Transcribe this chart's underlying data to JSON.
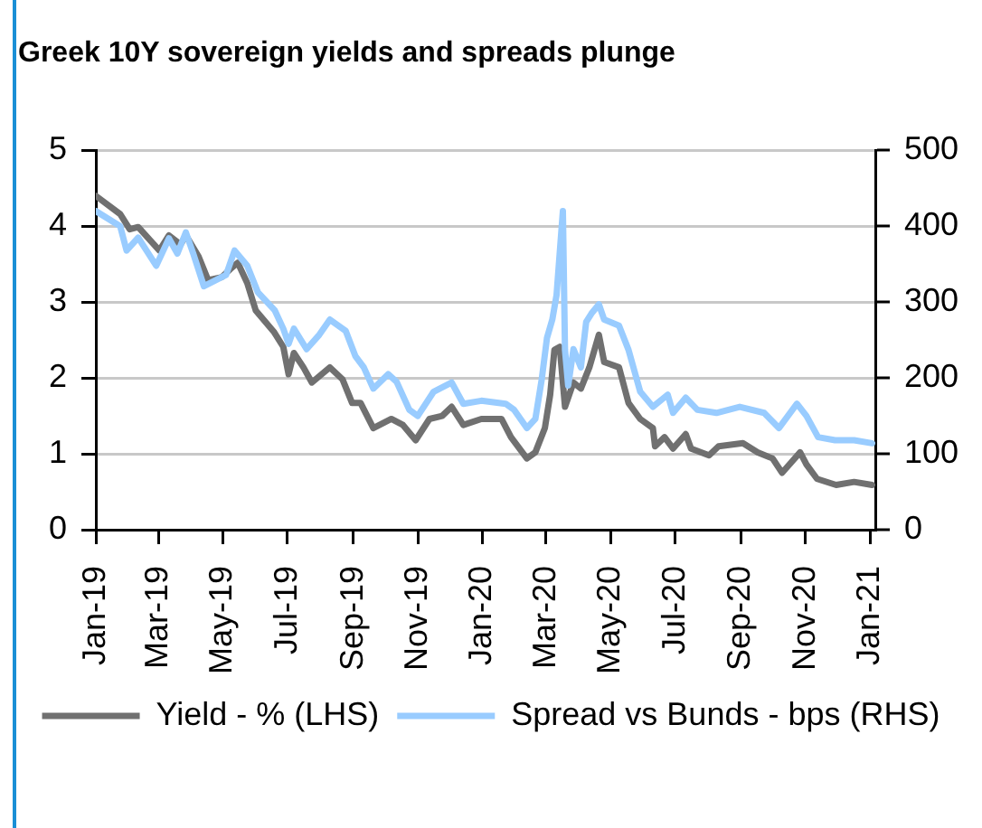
{
  "chart_data": {
    "type": "line",
    "title": "Greek 10Y sovereign yields and spreads plunge",
    "xlim": [
      "2019-01-01",
      "2021-01-06"
    ],
    "xticks": [
      {
        "value": "2019-01-01",
        "label": "Jan-19"
      },
      {
        "value": "2019-03-01",
        "label": "Mar-19"
      },
      {
        "value": "2019-05-01",
        "label": "May-19"
      },
      {
        "value": "2019-07-01",
        "label": "Jul-19"
      },
      {
        "value": "2019-09-01",
        "label": "Sep-19"
      },
      {
        "value": "2019-11-01",
        "label": "Nov-19"
      },
      {
        "value": "2020-01-01",
        "label": "Jan-20"
      },
      {
        "value": "2020-03-01",
        "label": "Mar-20"
      },
      {
        "value": "2020-05-01",
        "label": "May-20"
      },
      {
        "value": "2020-07-01",
        "label": "Jul-20"
      },
      {
        "value": "2020-09-01",
        "label": "Sep-20"
      },
      {
        "value": "2020-11-01",
        "label": "Nov-20"
      },
      {
        "value": "2021-01-01",
        "label": "Jan-21"
      }
    ],
    "ylim": [
      0,
      5
    ],
    "yticks": [
      0,
      1,
      2,
      3,
      4,
      5
    ],
    "y2lim": [
      0,
      500
    ],
    "y2ticks": [
      0,
      100,
      200,
      300,
      400,
      500
    ],
    "grid": "y",
    "legend": "bottom",
    "line_style": "solid",
    "series": [
      {
        "name": "Yield - % (LHS)",
        "color": "#707070",
        "x": [
          "2019-01-01",
          "2019-01-24",
          "2019-02-02",
          "2019-02-10",
          "2019-03-02",
          "2019-03-11",
          "2019-03-22",
          "2019-03-27",
          "2019-04-08",
          "2019-04-17",
          "2019-04-30",
          "2019-05-09",
          "2019-05-15",
          "2019-05-24",
          "2019-06-01",
          "2019-06-18",
          "2019-06-27",
          "2019-07-02",
          "2019-07-07",
          "2019-07-16",
          "2019-07-24",
          "2019-08-10",
          "2019-08-22",
          "2019-08-31",
          "2019-09-08",
          "2019-09-20",
          "2019-10-07",
          "2019-10-18",
          "2019-10-30",
          "2019-11-12",
          "2019-11-24",
          "2019-12-03",
          "2019-12-14",
          "2019-12-31",
          "2020-01-19",
          "2020-01-28",
          "2020-02-12",
          "2020-02-20",
          "2020-02-29",
          "2020-03-05",
          "2020-03-09",
          "2020-03-14",
          "2020-03-19",
          "2020-03-27",
          "2020-04-03",
          "2020-04-11",
          "2020-04-20",
          "2020-04-25",
          "2020-05-09",
          "2020-05-18",
          "2020-05-29",
          "2020-06-10",
          "2020-06-12",
          "2020-06-21",
          "2020-06-29",
          "2020-07-11",
          "2020-07-16",
          "2020-08-02",
          "2020-08-11",
          "2020-09-03",
          "2020-09-17",
          "2020-10-01",
          "2020-10-10",
          "2020-10-27",
          "2020-11-02",
          "2020-11-12",
          "2020-11-30",
          "2020-12-17",
          "2021-01-03"
        ],
        "values": [
          4.4,
          4.16,
          3.96,
          3.99,
          3.68,
          3.88,
          3.76,
          3.88,
          3.6,
          3.29,
          3.33,
          3.45,
          3.52,
          3.25,
          2.89,
          2.61,
          2.41,
          2.05,
          2.33,
          2.14,
          1.94,
          2.14,
          1.98,
          1.67,
          1.67,
          1.34,
          1.46,
          1.38,
          1.18,
          1.46,
          1.5,
          1.62,
          1.38,
          1.46,
          1.46,
          1.22,
          0.94,
          1.02,
          1.34,
          1.78,
          2.37,
          2.41,
          1.62,
          1.94,
          1.86,
          2.14,
          2.57,
          2.21,
          2.14,
          1.67,
          1.46,
          1.34,
          1.1,
          1.22,
          1.07,
          1.26,
          1.07,
          0.98,
          1.1,
          1.14,
          1.02,
          0.94,
          0.75,
          1.02,
          0.86,
          0.67,
          0.59,
          0.63,
          0.59
        ]
      },
      {
        "name": "Spread vs Bunds - bps (RHS)",
        "color": "#99ccff",
        "axis": "y2",
        "x": [
          "2019-01-01",
          "2019-01-24",
          "2019-01-30",
          "2019-02-10",
          "2019-02-27",
          "2019-03-11",
          "2019-03-19",
          "2019-03-27",
          "2019-04-03",
          "2019-04-13",
          "2019-05-04",
          "2019-05-12",
          "2019-05-24",
          "2019-06-03",
          "2019-06-19",
          "2019-06-27",
          "2019-07-02",
          "2019-07-07",
          "2019-07-19",
          "2019-07-31",
          "2019-08-10",
          "2019-08-25",
          "2019-09-03",
          "2019-09-11",
          "2019-09-20",
          "2019-10-04",
          "2019-10-12",
          "2019-10-24",
          "2019-11-01",
          "2019-11-16",
          "2019-12-03",
          "2019-12-14",
          "2019-12-31",
          "2020-01-23",
          "2020-01-31",
          "2020-02-12",
          "2020-02-20",
          "2020-02-26",
          "2020-03-02",
          "2020-03-07",
          "2020-03-11",
          "2020-03-17",
          "2020-03-19",
          "2020-03-22",
          "2020-03-27",
          "2020-04-03",
          "2020-04-08",
          "2020-04-13",
          "2020-04-20",
          "2020-04-25",
          "2020-05-09",
          "2020-05-18",
          "2020-05-29",
          "2020-06-10",
          "2020-06-24",
          "2020-06-29",
          "2020-07-11",
          "2020-07-22",
          "2020-08-09",
          "2020-08-31",
          "2020-09-23",
          "2020-10-07",
          "2020-10-24",
          "2020-11-02",
          "2020-11-13",
          "2020-11-29",
          "2020-12-17",
          "2021-01-03"
        ],
        "values": [
          420,
          400,
          368,
          385,
          348,
          384,
          364,
          392,
          364,
          321,
          336,
          368,
          348,
          313,
          289,
          265,
          245,
          265,
          238,
          257,
          277,
          262,
          229,
          214,
          186,
          205,
          195,
          158,
          150,
          182,
          194,
          166,
          170,
          166,
          158,
          134,
          146,
          198,
          253,
          277,
          309,
          420,
          237,
          190,
          238,
          214,
          274,
          285,
          297,
          277,
          269,
          237,
          182,
          162,
          178,
          154,
          174,
          158,
          154,
          162,
          154,
          134,
          166,
          150,
          122,
          118,
          118,
          114
        ]
      }
    ]
  }
}
